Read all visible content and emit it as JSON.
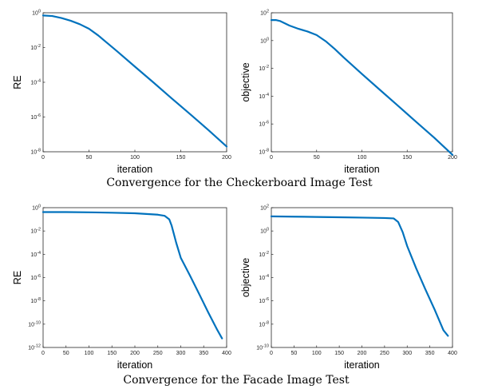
{
  "captions": [
    "Convergence for the Checkerboard Image Test",
    "Convergence for the Facade Image Test"
  ],
  "chart_data": [
    {
      "type": "line",
      "xlabel": "iteration",
      "ylabel": "RE",
      "yscale": "log",
      "xlim": [
        0,
        200
      ],
      "ylim_exp": [
        -8,
        0
      ],
      "x_ticks": [
        "0",
        "50",
        "100",
        "150",
        "200"
      ],
      "y_ticks": [
        {
          "base": "10",
          "exp": "0"
        },
        {
          "base": "10",
          "exp": "-2"
        },
        {
          "base": "10",
          "exp": "-4"
        },
        {
          "base": "10",
          "exp": "-6"
        },
        {
          "base": "10",
          "exp": "-8"
        }
      ],
      "series": [
        {
          "color": "#0072BD",
          "x": [
            0,
            10,
            20,
            30,
            40,
            50,
            60,
            70,
            80,
            100,
            120,
            140,
            160,
            180,
            200
          ],
          "y": [
            0.7,
            0.65,
            0.5,
            0.35,
            0.22,
            0.12,
            0.05,
            0.018,
            0.0065,
            0.0008,
            0.0001,
            1.2e-05,
            1.5e-06,
            1.8e-07,
            2e-08
          ]
        }
      ]
    },
    {
      "type": "line",
      "xlabel": "iteration",
      "ylabel": "objective",
      "yscale": "log",
      "xlim": [
        0,
        200
      ],
      "ylim_exp": [
        -8,
        2
      ],
      "x_ticks": [
        "0",
        "50",
        "100",
        "150",
        "200"
      ],
      "y_ticks": [
        {
          "base": "10",
          "exp": "2"
        },
        {
          "base": "10",
          "exp": "0"
        },
        {
          "base": "10",
          "exp": "-2"
        },
        {
          "base": "10",
          "exp": "-4"
        },
        {
          "base": "10",
          "exp": "-6"
        },
        {
          "base": "10",
          "exp": "-8"
        }
      ],
      "series": [
        {
          "color": "#0072BD",
          "x": [
            0,
            5,
            10,
            20,
            30,
            40,
            50,
            60,
            70,
            80,
            100,
            120,
            140,
            160,
            180,
            200
          ],
          "y": [
            30,
            30,
            25,
            12,
            7,
            4.5,
            2.5,
            0.9,
            0.25,
            0.06,
            0.004,
            0.00028,
            2e-05,
            1.4e-06,
            1e-07,
            6e-09
          ]
        }
      ]
    },
    {
      "type": "line",
      "xlabel": "iteration",
      "ylabel": "RE",
      "yscale": "log",
      "xlim": [
        0,
        400
      ],
      "ylim_exp": [
        -12,
        0
      ],
      "x_ticks": [
        "0",
        "50",
        "100",
        "150",
        "200",
        "250",
        "300",
        "350",
        "400"
      ],
      "y_ticks": [
        {
          "base": "10",
          "exp": "0"
        },
        {
          "base": "10",
          "exp": "-2"
        },
        {
          "base": "10",
          "exp": "-4"
        },
        {
          "base": "10",
          "exp": "-6"
        },
        {
          "base": "10",
          "exp": "-8"
        },
        {
          "base": "10",
          "exp": "-10"
        },
        {
          "base": "10",
          "exp": "-12"
        }
      ],
      "series": [
        {
          "color": "#0072BD",
          "x": [
            0,
            50,
            100,
            150,
            200,
            250,
            265,
            275,
            280,
            290,
            300,
            320,
            340,
            360,
            380,
            390
          ],
          "y": [
            0.42,
            0.42,
            0.4,
            0.37,
            0.33,
            0.25,
            0.2,
            0.1,
            0.03,
            0.001,
            5e-05,
            1.5e-06,
            4e-08,
            1e-09,
            3e-11,
            6e-12
          ]
        }
      ]
    },
    {
      "type": "line",
      "xlabel": "iteration",
      "ylabel": "objective",
      "yscale": "log",
      "xlim": [
        0,
        400
      ],
      "ylim_exp": [
        -10,
        2
      ],
      "x_ticks": [
        "0",
        "50",
        "100",
        "150",
        "200",
        "250",
        "300",
        "350",
        "400"
      ],
      "y_ticks": [
        {
          "base": "10",
          "exp": "2"
        },
        {
          "base": "10",
          "exp": "0"
        },
        {
          "base": "10",
          "exp": "-2"
        },
        {
          "base": "10",
          "exp": "-4"
        },
        {
          "base": "10",
          "exp": "-6"
        },
        {
          "base": "10",
          "exp": "-8"
        },
        {
          "base": "10",
          "exp": "-10"
        }
      ],
      "series": [
        {
          "color": "#0072BD",
          "x": [
            0,
            50,
            100,
            150,
            200,
            250,
            270,
            280,
            290,
            300,
            320,
            340,
            360,
            380,
            390
          ],
          "y": [
            18,
            17,
            16,
            15,
            14,
            13,
            12,
            6,
            0.8,
            0.05,
            0.0006,
            1e-05,
            2e-07,
            3e-09,
            1e-09
          ]
        }
      ]
    }
  ]
}
